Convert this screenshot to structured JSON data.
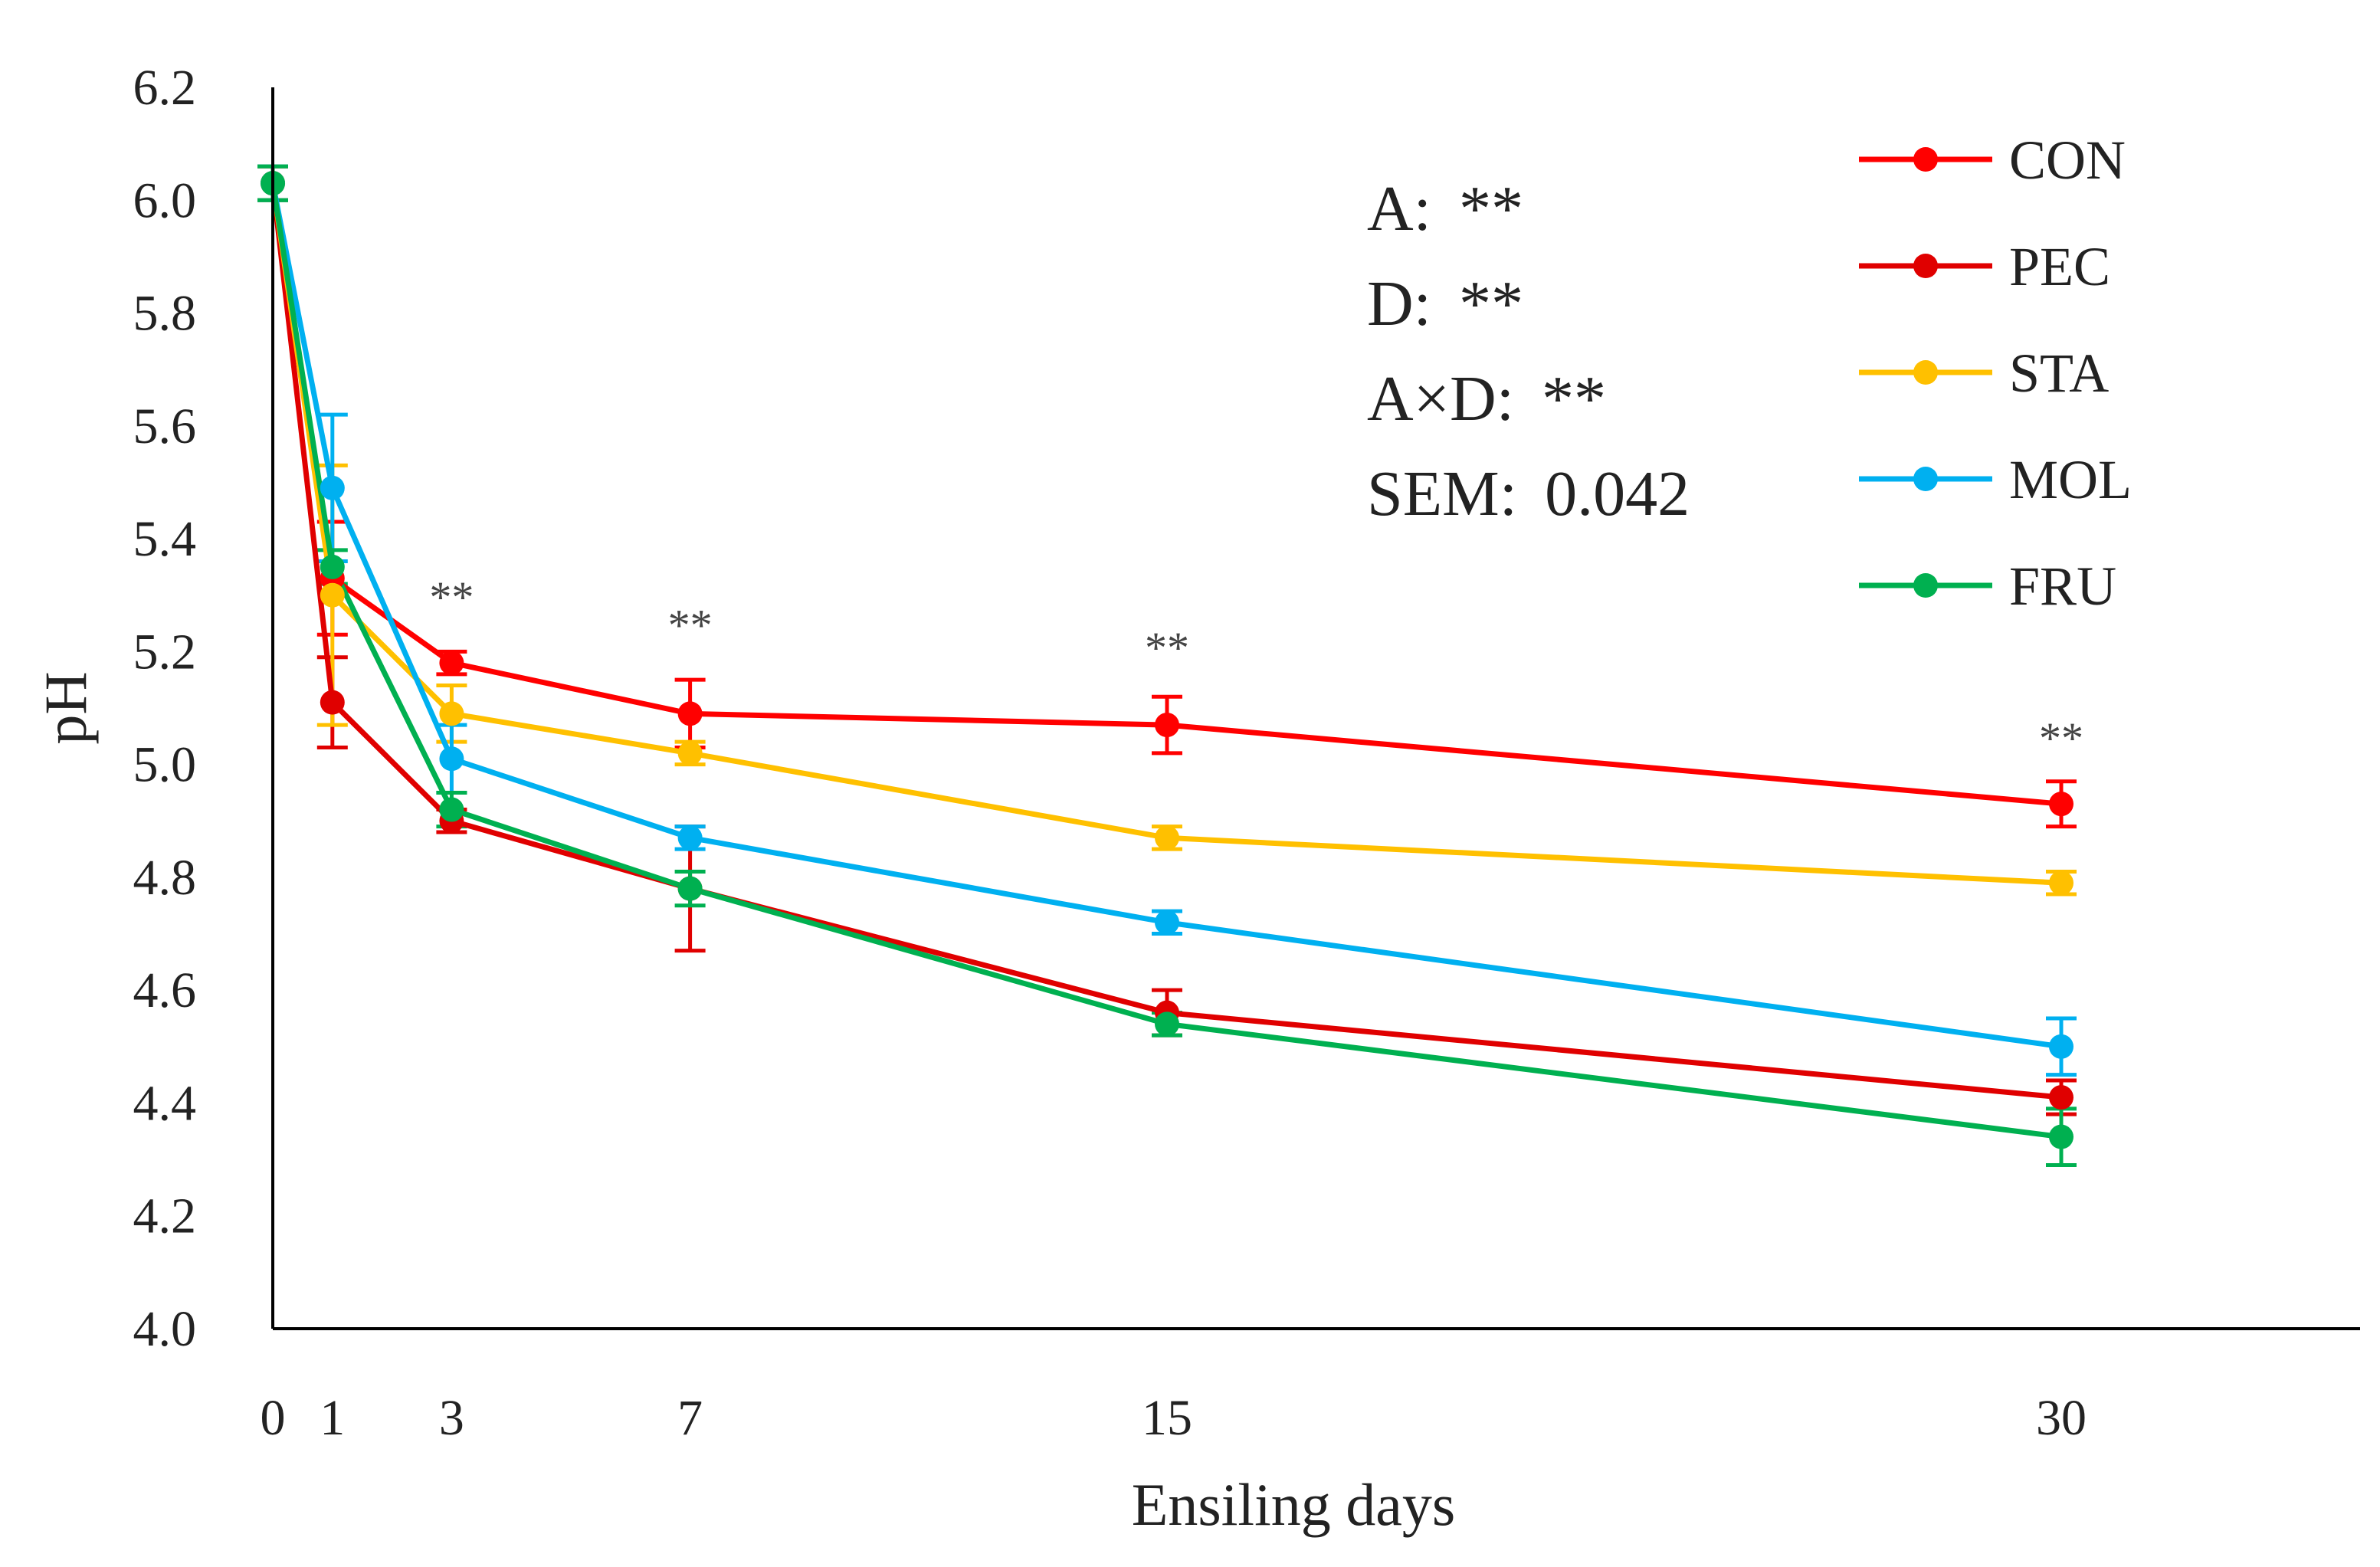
{
  "chart_data": {
    "type": "line",
    "title": "",
    "xlabel": "Ensiling days",
    "ylabel": "pH",
    "x": [
      0,
      1,
      3,
      7,
      15,
      30
    ],
    "x_tick_labels": [
      "0",
      "1",
      "3",
      "7",
      "15",
      "30"
    ],
    "xlim": [
      0,
      35
    ],
    "ylim": [
      4.0,
      6.2
    ],
    "y_ticks": [
      4.0,
      4.2,
      4.4,
      4.6,
      4.8,
      5.0,
      5.2,
      5.4,
      5.6,
      5.8,
      6.0,
      6.2
    ],
    "y_tick_labels": [
      "4.0",
      "4.2",
      "4.4",
      "4.6",
      "4.8",
      "5.0",
      "5.2",
      "5.4",
      "5.6",
      "5.8",
      "6.0",
      "6.2"
    ],
    "grid": false,
    "legend_position": "top-right",
    "series": [
      {
        "name": "CON",
        "color": "#ff0000",
        "values": [
          6.03,
          5.33,
          5.18,
          5.09,
          5.07,
          4.93
        ],
        "errors": [
          0.03,
          0.1,
          0.02,
          0.06,
          0.05,
          0.04
        ]
      },
      {
        "name": "PEC",
        "color": "#e00000",
        "values": [
          6.03,
          5.11,
          4.9,
          4.78,
          4.56,
          4.41
        ],
        "errors": [
          0.03,
          0.08,
          0.02,
          0.11,
          0.04,
          0.03
        ]
      },
      {
        "name": "STA",
        "color": "#ffc000",
        "values": [
          6.03,
          5.3,
          5.09,
          5.02,
          4.87,
          4.79
        ],
        "errors": [
          0.03,
          0.23,
          0.05,
          0.02,
          0.02,
          0.02
        ]
      },
      {
        "name": "MOL",
        "color": "#00b0f0",
        "values": [
          6.03,
          5.49,
          5.01,
          4.87,
          4.72,
          4.5
        ],
        "errors": [
          0.03,
          0.13,
          0.06,
          0.02,
          0.02,
          0.05
        ]
      },
      {
        "name": "FRU",
        "color": "#00b050",
        "values": [
          6.03,
          5.35,
          4.92,
          4.78,
          4.54,
          4.34
        ],
        "errors": [
          0.03,
          0.03,
          0.03,
          0.03,
          0.02,
          0.05
        ]
      }
    ],
    "significance_marks": [
      {
        "x": 3,
        "y": 5.27,
        "label": "**"
      },
      {
        "x": 7,
        "y": 5.22,
        "label": "**"
      },
      {
        "x": 15,
        "y": 5.18,
        "label": "**"
      },
      {
        "x": 30,
        "y": 5.02,
        "label": "**"
      }
    ],
    "annotations": [
      {
        "label": "A:",
        "value": "**"
      },
      {
        "label": "D:",
        "value": "**"
      },
      {
        "label": "A×D:",
        "value": "**"
      },
      {
        "label": "SEM:",
        "value": "0.042"
      }
    ]
  }
}
